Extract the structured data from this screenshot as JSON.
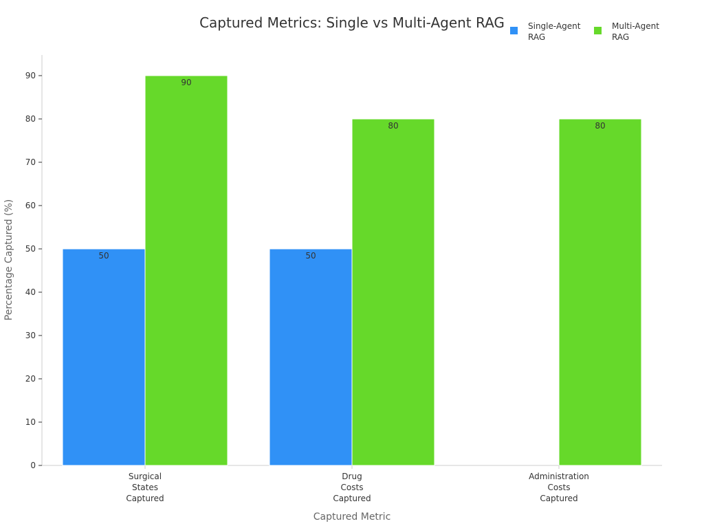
{
  "chart_data": {
    "type": "bar",
    "title": "Captured Metrics: Single vs Multi-Agent RAG",
    "xlabel": "Captured Metric",
    "ylabel": "Percentage Captured (%)",
    "categories": [
      [
        "Surgical",
        "States",
        "Captured"
      ],
      [
        "Drug",
        "Costs",
        "Captured"
      ],
      [
        "Administration",
        "Costs",
        "Captured"
      ]
    ],
    "series": [
      {
        "name": [
          "Single-Agent",
          "RAG"
        ],
        "color": "#3091f6",
        "values": [
          50,
          50,
          null
        ]
      },
      {
        "name": [
          "Multi-Agent",
          "RAG"
        ],
        "color": "#66d92a",
        "values": [
          90,
          80,
          80
        ]
      }
    ],
    "ylim": [
      0,
      90
    ],
    "yticks": [
      0,
      10,
      20,
      30,
      40,
      50,
      60,
      70,
      80,
      90
    ],
    "grid": false,
    "legend": "top-right",
    "data_labels": true
  }
}
